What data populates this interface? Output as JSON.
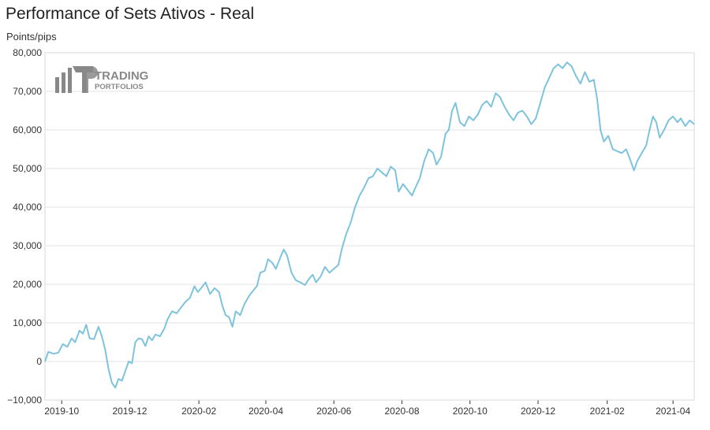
{
  "title": "Performance of Sets Ativos - Real",
  "logo": {
    "brand_line1": "TRADING",
    "brand_line2": "PORTFOLIOS"
  },
  "colors": {
    "line": "#7ec3de",
    "grid": "#e3e3e3",
    "axis": "#333333",
    "logo": "#888888"
  },
  "chart_data": {
    "type": "line",
    "title": "Performance of Sets Ativos - Real",
    "ylabel": "Points/pips",
    "xlabel": "",
    "ylim": [
      -10000,
      80000
    ],
    "xlim": [
      "2019-09-16",
      "2021-04-20"
    ],
    "grid": true,
    "y_ticks": [
      -10000,
      0,
      10000,
      20000,
      30000,
      40000,
      50000,
      60000,
      70000,
      80000
    ],
    "y_tick_labels": [
      "−10,000",
      "0",
      "10,000",
      "20,000",
      "30,000",
      "40,000",
      "50,000",
      "60,000",
      "70,000",
      "80,000"
    ],
    "x_ticks": [
      "2019-10-01",
      "2019-12-01",
      "2020-02-01",
      "2020-04-01",
      "2020-06-01",
      "2020-08-01",
      "2020-10-01",
      "2020-12-01",
      "2021-02-01",
      "2021-04-01"
    ],
    "x_tick_labels": [
      "2019-10",
      "2019-12",
      "2020-02",
      "2020-04",
      "2020-06",
      "2020-08",
      "2020-10",
      "2020-12",
      "2021-02",
      "2021-04"
    ],
    "series": [
      {
        "values": [
          [
            "2019-09-16",
            0
          ],
          [
            "2019-09-19",
            2500
          ],
          [
            "2019-09-24",
            2000
          ],
          [
            "2019-09-28",
            2300
          ],
          [
            "2019-10-02",
            4500
          ],
          [
            "2019-10-06",
            3800
          ],
          [
            "2019-10-10",
            6000
          ],
          [
            "2019-10-13",
            5000
          ],
          [
            "2019-10-17",
            8000
          ],
          [
            "2019-10-20",
            7200
          ],
          [
            "2019-10-23",
            9500
          ],
          [
            "2019-10-26",
            6000
          ],
          [
            "2019-10-30",
            5800
          ],
          [
            "2019-11-03",
            9000
          ],
          [
            "2019-11-06",
            6500
          ],
          [
            "2019-11-09",
            3000
          ],
          [
            "2019-11-12",
            -2000
          ],
          [
            "2019-11-15",
            -5500
          ],
          [
            "2019-11-18",
            -6800
          ],
          [
            "2019-11-21",
            -4500
          ],
          [
            "2019-11-24",
            -5000
          ],
          [
            "2019-11-27",
            -2500
          ],
          [
            "2019-11-30",
            0
          ],
          [
            "2019-12-03",
            -500
          ],
          [
            "2019-12-06",
            5000
          ],
          [
            "2019-12-09",
            6000
          ],
          [
            "2019-12-12",
            5800
          ],
          [
            "2019-12-15",
            4000
          ],
          [
            "2019-12-18",
            6500
          ],
          [
            "2019-12-21",
            5500
          ],
          [
            "2019-12-24",
            7000
          ],
          [
            "2019-12-28",
            6500
          ],
          [
            "2020-01-01",
            8500
          ],
          [
            "2020-01-04",
            11000
          ],
          [
            "2020-01-08",
            13000
          ],
          [
            "2020-01-12",
            12500
          ],
          [
            "2020-01-16",
            14000
          ],
          [
            "2020-01-20",
            15500
          ],
          [
            "2020-01-24",
            16500
          ],
          [
            "2020-01-28",
            19500
          ],
          [
            "2020-01-31",
            18000
          ],
          [
            "2020-02-03",
            19000
          ],
          [
            "2020-02-07",
            20500
          ],
          [
            "2020-02-11",
            17500
          ],
          [
            "2020-02-15",
            19000
          ],
          [
            "2020-02-19",
            18000
          ],
          [
            "2020-02-22",
            14500
          ],
          [
            "2020-02-25",
            12000
          ],
          [
            "2020-02-28",
            11500
          ],
          [
            "2020-03-02",
            9000
          ],
          [
            "2020-03-05",
            13000
          ],
          [
            "2020-03-09",
            12000
          ],
          [
            "2020-03-13",
            15000
          ],
          [
            "2020-03-17",
            17000
          ],
          [
            "2020-03-21",
            18500
          ],
          [
            "2020-03-24",
            19500
          ],
          [
            "2020-03-27",
            23000
          ],
          [
            "2020-03-31",
            23500
          ],
          [
            "2020-04-03",
            26500
          ],
          [
            "2020-04-07",
            25500
          ],
          [
            "2020-04-10",
            24000
          ],
          [
            "2020-04-14",
            27000
          ],
          [
            "2020-04-17",
            29000
          ],
          [
            "2020-04-20",
            27500
          ],
          [
            "2020-04-24",
            23000
          ],
          [
            "2020-04-28",
            21000
          ],
          [
            "2020-05-02",
            20500
          ],
          [
            "2020-05-06",
            19800
          ],
          [
            "2020-05-10",
            21500
          ],
          [
            "2020-05-13",
            22500
          ],
          [
            "2020-05-16",
            20500
          ],
          [
            "2020-05-20",
            22000
          ],
          [
            "2020-05-24",
            24500
          ],
          [
            "2020-05-28",
            23000
          ],
          [
            "2020-06-01",
            24000
          ],
          [
            "2020-06-05",
            25000
          ],
          [
            "2020-06-08",
            29000
          ],
          [
            "2020-06-12",
            33000
          ],
          [
            "2020-06-16",
            36000
          ],
          [
            "2020-06-20",
            40000
          ],
          [
            "2020-06-24",
            43000
          ],
          [
            "2020-06-28",
            45000
          ],
          [
            "2020-07-02",
            47500
          ],
          [
            "2020-07-06",
            48000
          ],
          [
            "2020-07-10",
            50000
          ],
          [
            "2020-07-14",
            49000
          ],
          [
            "2020-07-18",
            48000
          ],
          [
            "2020-07-22",
            50500
          ],
          [
            "2020-07-26",
            49500
          ],
          [
            "2020-07-29",
            44000
          ],
          [
            "2020-08-02",
            46000
          ],
          [
            "2020-08-06",
            44500
          ],
          [
            "2020-08-10",
            43000
          ],
          [
            "2020-08-13",
            45000
          ],
          [
            "2020-08-17",
            47500
          ],
          [
            "2020-08-21",
            52000
          ],
          [
            "2020-08-25",
            55000
          ],
          [
            "2020-08-29",
            54000
          ],
          [
            "2020-09-01",
            51000
          ],
          [
            "2020-09-05",
            53000
          ],
          [
            "2020-09-09",
            59000
          ],
          [
            "2020-09-12",
            60000
          ],
          [
            "2020-09-15",
            65000
          ],
          [
            "2020-09-18",
            67000
          ],
          [
            "2020-09-22",
            62000
          ],
          [
            "2020-09-26",
            61000
          ],
          [
            "2020-09-30",
            63500
          ],
          [
            "2020-10-04",
            62500
          ],
          [
            "2020-10-08",
            64000
          ],
          [
            "2020-10-12",
            66500
          ],
          [
            "2020-10-16",
            67500
          ],
          [
            "2020-10-20",
            66000
          ],
          [
            "2020-10-24",
            69500
          ],
          [
            "2020-10-28",
            68500
          ],
          [
            "2020-11-01",
            66000
          ],
          [
            "2020-11-05",
            64000
          ],
          [
            "2020-11-09",
            62500
          ],
          [
            "2020-11-13",
            64500
          ],
          [
            "2020-11-17",
            65000
          ],
          [
            "2020-11-21",
            63500
          ],
          [
            "2020-11-25",
            61500
          ],
          [
            "2020-11-29",
            63000
          ],
          [
            "2020-12-03",
            67000
          ],
          [
            "2020-12-07",
            71000
          ],
          [
            "2020-12-11",
            73500
          ],
          [
            "2020-12-15",
            76000
          ],
          [
            "2020-12-19",
            77000
          ],
          [
            "2020-12-23",
            76000
          ],
          [
            "2020-12-27",
            77500
          ],
          [
            "2020-12-31",
            76500
          ],
          [
            "2021-01-04",
            74000
          ],
          [
            "2021-01-08",
            72000
          ],
          [
            "2021-01-12",
            75000
          ],
          [
            "2021-01-16",
            72500
          ],
          [
            "2021-01-20",
            73000
          ],
          [
            "2021-01-23",
            68000
          ],
          [
            "2021-01-26",
            60000
          ],
          [
            "2021-01-29",
            57000
          ],
          [
            "2021-02-02",
            58500
          ],
          [
            "2021-02-06",
            55000
          ],
          [
            "2021-02-10",
            54500
          ],
          [
            "2021-02-14",
            54000
          ],
          [
            "2021-02-18",
            55000
          ],
          [
            "2021-02-22",
            52000
          ],
          [
            "2021-02-25",
            49500
          ],
          [
            "2021-02-28",
            52000
          ],
          [
            "2021-03-04",
            54000
          ],
          [
            "2021-03-08",
            56000
          ],
          [
            "2021-03-11",
            60000
          ],
          [
            "2021-03-14",
            63500
          ],
          [
            "2021-03-17",
            62000
          ],
          [
            "2021-03-20",
            58000
          ],
          [
            "2021-03-24",
            60000
          ],
          [
            "2021-03-28",
            62500
          ],
          [
            "2021-04-01",
            63500
          ],
          [
            "2021-04-05",
            62000
          ],
          [
            "2021-04-08",
            63000
          ],
          [
            "2021-04-12",
            61000
          ],
          [
            "2021-04-16",
            62500
          ],
          [
            "2021-04-20",
            61500
          ]
        ]
      }
    ]
  }
}
